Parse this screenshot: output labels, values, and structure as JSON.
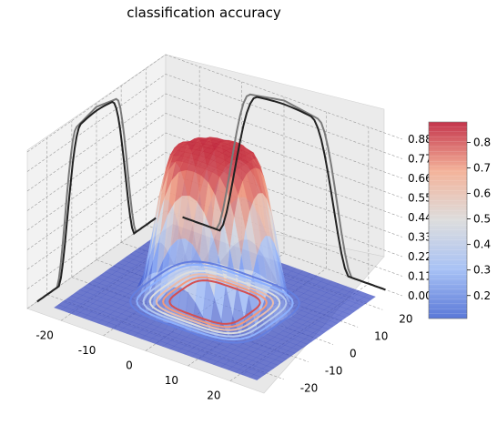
{
  "chart_data": {
    "type": "surface3d",
    "title": "classification accuracy",
    "xlabel": "",
    "ylabel": "",
    "zlabel": "",
    "x_ticks": [
      -20,
      -10,
      0,
      10,
      20
    ],
    "y_ticks": [
      -20,
      -10,
      0,
      10,
      20
    ],
    "z_ticks": [
      "0.00",
      "0.11",
      "0.22",
      "0.33",
      "0.44",
      "0.55",
      "0.66",
      "0.77",
      "0.88"
    ],
    "xlim": [
      -28,
      28
    ],
    "ylim": [
      -28,
      28
    ],
    "zlim": [
      0,
      0.88
    ],
    "colormap": "coolwarm",
    "colorbar": {
      "ticks": [
        "0.2",
        "0.3",
        "0.4",
        "0.5",
        "0.6",
        "0.7",
        "0.8"
      ],
      "range": [
        0.11,
        0.88
      ],
      "low_color": "#3b4cc0",
      "mid_color": "#dddddd",
      "high_color": "#b40426"
    },
    "surface": {
      "description_free": true,
      "peak_center_x": 0,
      "peak_center_y": 0,
      "peak_value": 0.86,
      "plateau_radius": 8,
      "falloff_radius": 16,
      "floor_value": 0.0
    },
    "contour_levels": [
      0.11,
      0.22,
      0.33,
      0.44,
      0.55,
      0.66,
      0.77
    ],
    "grid": true
  }
}
